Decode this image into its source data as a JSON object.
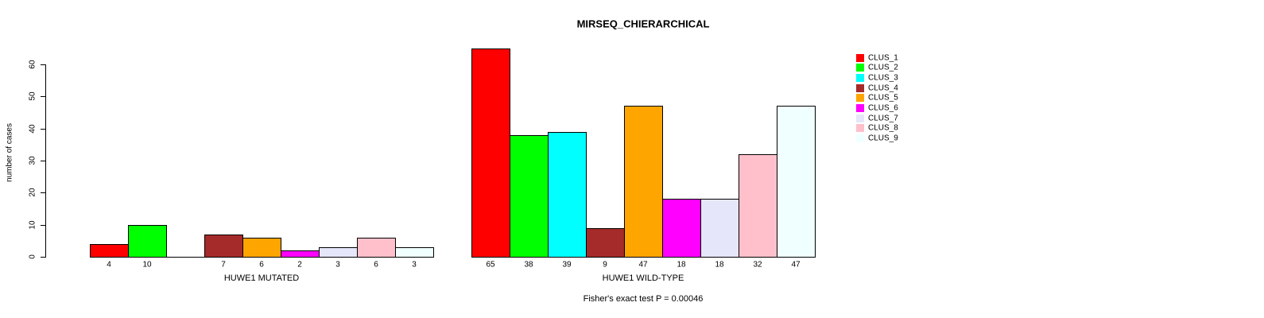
{
  "chart_data": {
    "type": "bar",
    "title": "MIRSEQ_CHIERARCHICAL",
    "ylabel": "number of cases",
    "xlabel": "",
    "ylim": [
      0,
      65
    ],
    "yticks": [
      0,
      10,
      20,
      30,
      40,
      50,
      60
    ],
    "grid": false,
    "legend_position": "top-right",
    "bar_outline_color": "#000000",
    "value_labels_shown": true,
    "annotation": "Fisher's exact test P = 0.00046",
    "categories": [
      "HUWE1 MUTATED",
      "HUWE1 WILD-TYPE"
    ],
    "series": [
      {
        "name": "CLUS_1",
        "color": "#FF0000",
        "values": [
          4,
          65
        ]
      },
      {
        "name": "CLUS_2",
        "color": "#00FF00",
        "values": [
          10,
          38
        ]
      },
      {
        "name": "CLUS_3",
        "color": "#00FFFF",
        "values": [
          0,
          39
        ]
      },
      {
        "name": "CLUS_4",
        "color": "#A52A2A",
        "values": [
          7,
          9
        ]
      },
      {
        "name": "CLUS_5",
        "color": "#FFA500",
        "values": [
          6,
          47
        ]
      },
      {
        "name": "CLUS_6",
        "color": "#FF00FF",
        "values": [
          2,
          18
        ]
      },
      {
        "name": "CLUS_7",
        "color": "#E6E6FA",
        "values": [
          3,
          18
        ]
      },
      {
        "name": "CLUS_8",
        "color": "#FFC0CB",
        "values": [
          6,
          32
        ]
      },
      {
        "name": "CLUS_9",
        "color": "#F0FFFF",
        "values": [
          3,
          47
        ]
      }
    ]
  }
}
